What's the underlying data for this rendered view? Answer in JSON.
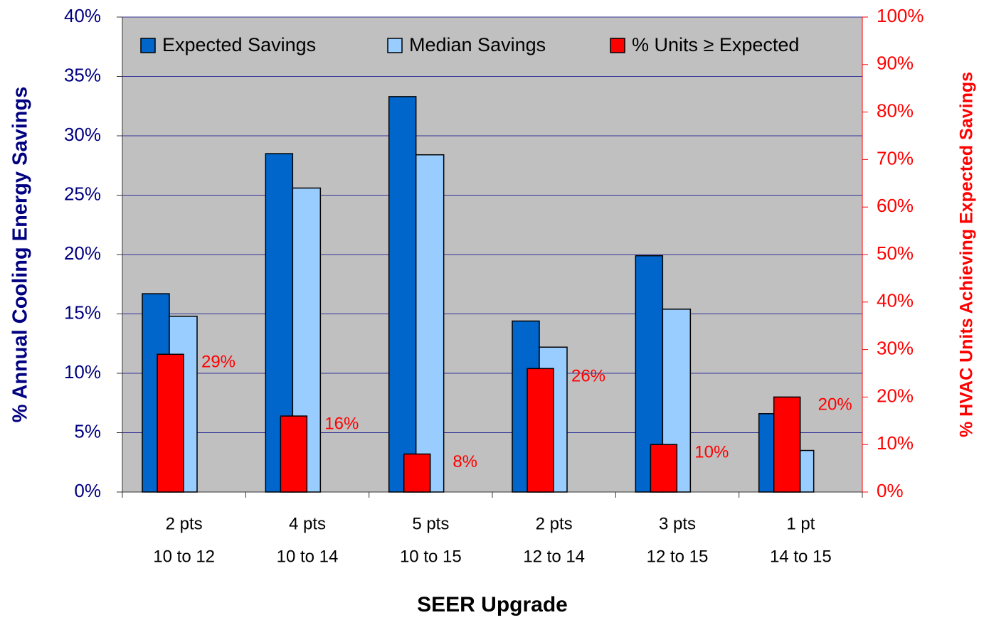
{
  "chart_data": {
    "type": "bar",
    "x_label": "SEER Upgrade",
    "y_label": "% Annual Cooling Energy Savings",
    "y2_label": "% HVAC Units Achieving Expected Savings",
    "categories": [
      [
        "2 pts",
        "10 to 12"
      ],
      [
        "4 pts",
        "10 to 14"
      ],
      [
        "5 pts",
        "10 to 15"
      ],
      [
        "2 pts",
        "12 to 14"
      ],
      [
        "3 pts",
        "12 to 15"
      ],
      [
        "1 pt",
        "14 to 15"
      ]
    ],
    "series": [
      {
        "name": "Expected Savings",
        "color": "#0066cc",
        "values": [
          16.7,
          28.5,
          33.3,
          14.4,
          19.9,
          6.6
        ]
      },
      {
        "name": "Median Savings",
        "color": "#99ccff",
        "values": [
          14.8,
          25.6,
          28.4,
          12.2,
          15.4,
          3.5
        ]
      },
      {
        "name": "% Units ≥ Expected",
        "color": "#ff0000",
        "axis": "y2",
        "values": [
          29,
          16,
          8,
          26,
          10,
          20
        ],
        "value_labels": [
          "29%",
          "16%",
          "8%",
          "26%",
          "10%",
          "20%"
        ]
      }
    ],
    "ylim": [
      0,
      40
    ],
    "yticks": [
      {
        "value": 0,
        "label": "0%"
      },
      {
        "value": 5,
        "label": "5%"
      },
      {
        "value": 10,
        "label": "10%"
      },
      {
        "value": 15,
        "label": "15%"
      },
      {
        "value": 20,
        "label": "20%"
      },
      {
        "value": 25,
        "label": "25%"
      },
      {
        "value": 30,
        "label": "30%"
      },
      {
        "value": 35,
        "label": "35%"
      },
      {
        "value": 40,
        "label": "40%"
      }
    ],
    "y2lim": [
      0,
      100
    ],
    "y2ticks": [
      {
        "value": 0,
        "label": "0%"
      },
      {
        "value": 10,
        "label": "10%"
      },
      {
        "value": 20,
        "label": "20%"
      },
      {
        "value": 30,
        "label": "30%"
      },
      {
        "value": 40,
        "label": "40%"
      },
      {
        "value": 50,
        "label": "50%"
      },
      {
        "value": 60,
        "label": "60%"
      },
      {
        "value": 70,
        "label": "70%"
      },
      {
        "value": 80,
        "label": "80%"
      },
      {
        "value": 90,
        "label": "90%"
      },
      {
        "value": 100,
        "label": "100%"
      }
    ],
    "grid": true,
    "legend": "top"
  }
}
